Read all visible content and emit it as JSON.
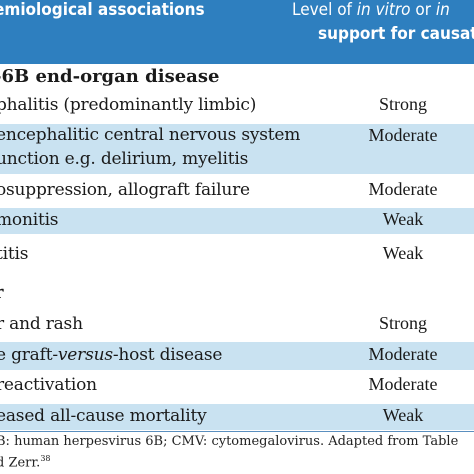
{
  "header": {
    "left": "emiological associations",
    "right_line1_pre": "Level of ",
    "right_line1_italic": "in vitro",
    "right_line1_mid": " or ",
    "right_line1_italic2": "in",
    "right_line2": "support for causatio"
  },
  "sections": [
    {
      "title": "-6B end-organ disease"
    },
    {
      "title": "r"
    }
  ],
  "rows": [
    {
      "association": "phalitis (predominantly limbic)",
      "level": "Strong",
      "shaded": false
    },
    {
      "association": "encephalitic central nervous system",
      "level": "Moderate",
      "shaded": true
    },
    {
      "association": "unction e.g. delirium, myelitis",
      "level": "",
      "shaded": true
    },
    {
      "association": "osuppression, allograft failure",
      "level": "Moderate",
      "shaded": false
    },
    {
      "association": "monitis",
      "level": "Weak",
      "shaded": true
    },
    {
      "association": "titis",
      "level": "Weak",
      "shaded": false
    },
    {
      "association": "r and rash",
      "level": "Strong",
      "shaded": false
    },
    {
      "association_pre": "e graft-",
      "association_italic": "versus",
      "association_post": "-host disease",
      "level": "Moderate",
      "shaded": true
    },
    {
      "association": "reactivation",
      "level": "Moderate",
      "shaded": false
    },
    {
      "association": "eased all-cause mortality",
      "level": "Weak",
      "shaded": true
    }
  ],
  "footer": {
    "line1": "B: human herpesvirus 6B; CMV: cytomegalovirus. Adapted from Table",
    "line2_pre": "d Zerr.",
    "line2_sup": "38"
  }
}
